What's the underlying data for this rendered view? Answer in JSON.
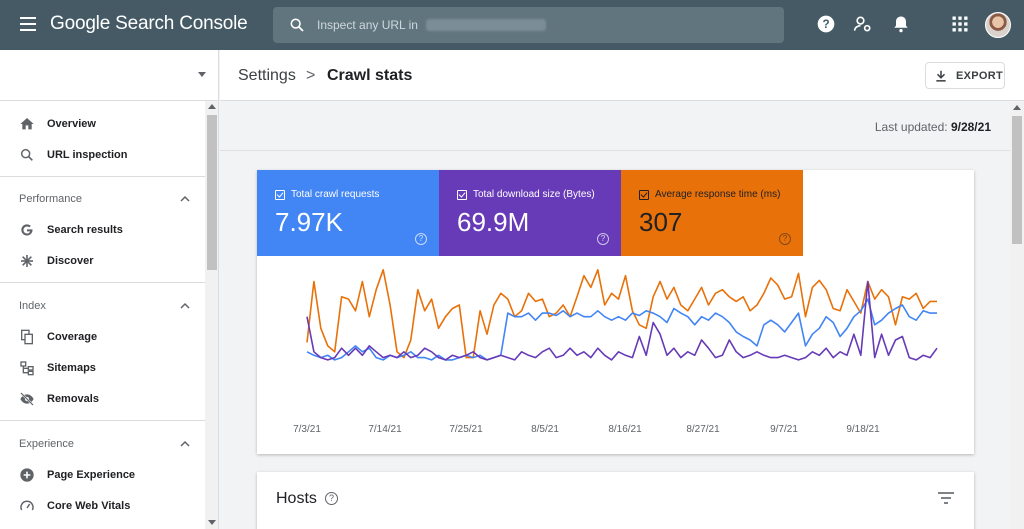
{
  "app": {
    "title": "Google Search Console"
  },
  "search": {
    "placeholder": "Inspect any URL in"
  },
  "topbar_icons": [
    "help-icon",
    "manage-users-icon",
    "notifications-icon",
    "apps-icon"
  ],
  "header": {
    "crumb_parent": "Settings",
    "crumb_separator": ">",
    "crumb_current": "Crawl stats",
    "export_label": "EXPORT"
  },
  "last_updated": {
    "label": "Last updated:",
    "value": "9/28/21"
  },
  "sidebar": {
    "items": [
      {
        "label": "Overview",
        "icon": "home-icon"
      },
      {
        "label": "URL inspection",
        "icon": "search-icon"
      }
    ],
    "sections": [
      {
        "title": "Performance",
        "items": [
          {
            "label": "Search results",
            "icon": "google-g-icon"
          },
          {
            "label": "Discover",
            "icon": "asterisk-icon"
          }
        ]
      },
      {
        "title": "Index",
        "items": [
          {
            "label": "Coverage",
            "icon": "pages-icon"
          },
          {
            "label": "Sitemaps",
            "icon": "sitemap-icon"
          },
          {
            "label": "Removals",
            "icon": "eye-off-icon"
          }
        ]
      },
      {
        "title": "Experience",
        "items": [
          {
            "label": "Page Experience",
            "icon": "plus-circle-icon"
          },
          {
            "label": "Core Web Vitals",
            "icon": "speedometer-icon"
          }
        ]
      }
    ]
  },
  "metrics": [
    {
      "label": "Total crawl requests",
      "value": "7.97K",
      "color": "#4285f4"
    },
    {
      "label": "Total download size (Bytes)",
      "value": "69.9M",
      "color": "#673ab7"
    },
    {
      "label": "Average response time (ms)",
      "value": "307",
      "color": "#e8710a"
    }
  ],
  "chart_data": {
    "type": "line",
    "x_tick_labels": [
      "7/3/21",
      "7/14/21",
      "7/25/21",
      "8/5/21",
      "8/16/21",
      "8/27/21",
      "9/7/21",
      "9/18/21"
    ],
    "x_range": [
      "7/1/21",
      "9/28/21"
    ],
    "y_axis_visible": false,
    "grid": false,
    "legend": "metric tiles above chart",
    "series": [
      {
        "name": "Average response time (ms)",
        "color": "#e8710a",
        "values": [
          33,
          85,
          45,
          30,
          25,
          72,
          70,
          60,
          85,
          55,
          78,
          95,
          65,
          25,
          20,
          35,
          78,
          60,
          70,
          45,
          55,
          62,
          65,
          20,
          20,
          60,
          40,
          65,
          75,
          70,
          55,
          60,
          75,
          68,
          70,
          55,
          58,
          65,
          55,
          72,
          90,
          80,
          95,
          65,
          75,
          70,
          90,
          60,
          48,
          45,
          72,
          85,
          70,
          80,
          65,
          60,
          70,
          80,
          65,
          75,
          78,
          72,
          68,
          72,
          60,
          65,
          75,
          88,
          82,
          70,
          72,
          92,
          55,
          80,
          86,
          78,
          62,
          60,
          78,
          68,
          58,
          85,
          70,
          78,
          72,
          48,
          72,
          70,
          75,
          62,
          68,
          68
        ]
      },
      {
        "name": "Total crawl requests",
        "color": "#4285f4",
        "values": [
          25,
          22,
          20,
          22,
          18,
          20,
          25,
          30,
          25,
          28,
          20,
          18,
          22,
          20,
          22,
          25,
          20,
          20,
          18,
          22,
          18,
          18,
          20,
          22,
          20,
          22,
          18,
          20,
          22,
          58,
          55,
          55,
          58,
          52,
          58,
          58,
          56,
          60,
          55,
          58,
          55,
          55,
          60,
          55,
          52,
          55,
          52,
          58,
          56,
          60,
          58,
          55,
          50,
          62,
          58,
          55,
          48,
          55,
          52,
          58,
          55,
          50,
          42,
          38,
          35,
          30,
          48,
          52,
          48,
          42,
          50,
          58,
          30,
          40,
          45,
          55,
          50,
          38,
          45,
          55,
          60,
          70,
          48,
          52,
          58,
          62,
          65,
          55,
          52,
          60,
          58,
          58
        ]
      },
      {
        "name": "Total download size (Bytes)",
        "color": "#673ab7",
        "values": [
          55,
          25,
          20,
          18,
          20,
          28,
          22,
          28,
          22,
          30,
          25,
          20,
          22,
          20,
          25,
          20,
          22,
          28,
          25,
          20,
          18,
          22,
          20,
          22,
          25,
          20,
          18,
          20,
          22,
          20,
          18,
          25,
          22,
          20,
          25,
          28,
          20,
          22,
          28,
          22,
          25,
          20,
          28,
          22,
          18,
          25,
          22,
          20,
          38,
          22,
          50,
          40,
          22,
          28,
          20,
          25,
          22,
          35,
          28,
          20,
          22,
          35,
          25,
          20,
          22,
          25,
          22,
          20,
          20,
          22,
          20,
          18,
          20,
          25,
          22,
          28,
          20,
          25,
          22,
          40,
          22,
          85,
          20,
          40,
          22,
          35,
          38,
          20,
          18,
          22,
          20,
          28
        ]
      }
    ]
  }
}
